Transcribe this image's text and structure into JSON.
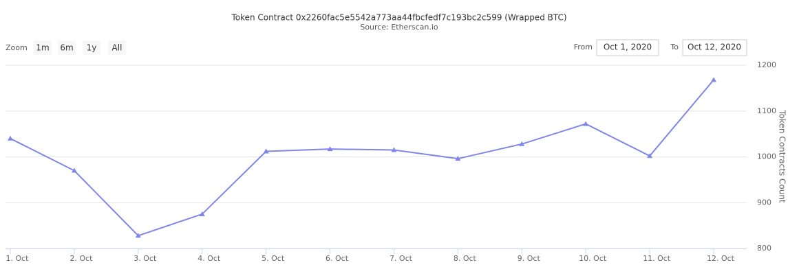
{
  "controls": {
    "zoom_label": "Zoom",
    "zoom_buttons": [
      "1m",
      "6m",
      "1y",
      "All"
    ],
    "from_label": "From",
    "from_value": "Oct 1, 2020",
    "to_label": "To",
    "to_value": "Oct 12, 2020"
  },
  "chart_data": {
    "type": "line",
    "title": "Token Contract 0x2260fac5e5542a773aa44fbcfedf7c193bc2c599 (Wrapped BTC)",
    "subtitle": "Source: Etherscan.io",
    "y_axis_label": "Token Contracts Count",
    "categories": [
      "1. Oct",
      "2. Oct",
      "3. Oct",
      "4. Oct",
      "5. Oct",
      "6. Oct",
      "7. Oct",
      "8. Oct",
      "9. Oct",
      "10. Oct",
      "11. Oct",
      "12. Oct"
    ],
    "series": [
      {
        "name": "Token Contracts Count",
        "color": "#8085e9",
        "values": [
          1040,
          970,
          828,
          875,
          1012,
          1017,
          1015,
          996,
          1028,
          1072,
          1002,
          1168
        ]
      }
    ],
    "ylim": [
      800,
      1200
    ],
    "yticks": [
      800,
      900,
      1000,
      1100,
      1200
    ],
    "grid": true
  }
}
